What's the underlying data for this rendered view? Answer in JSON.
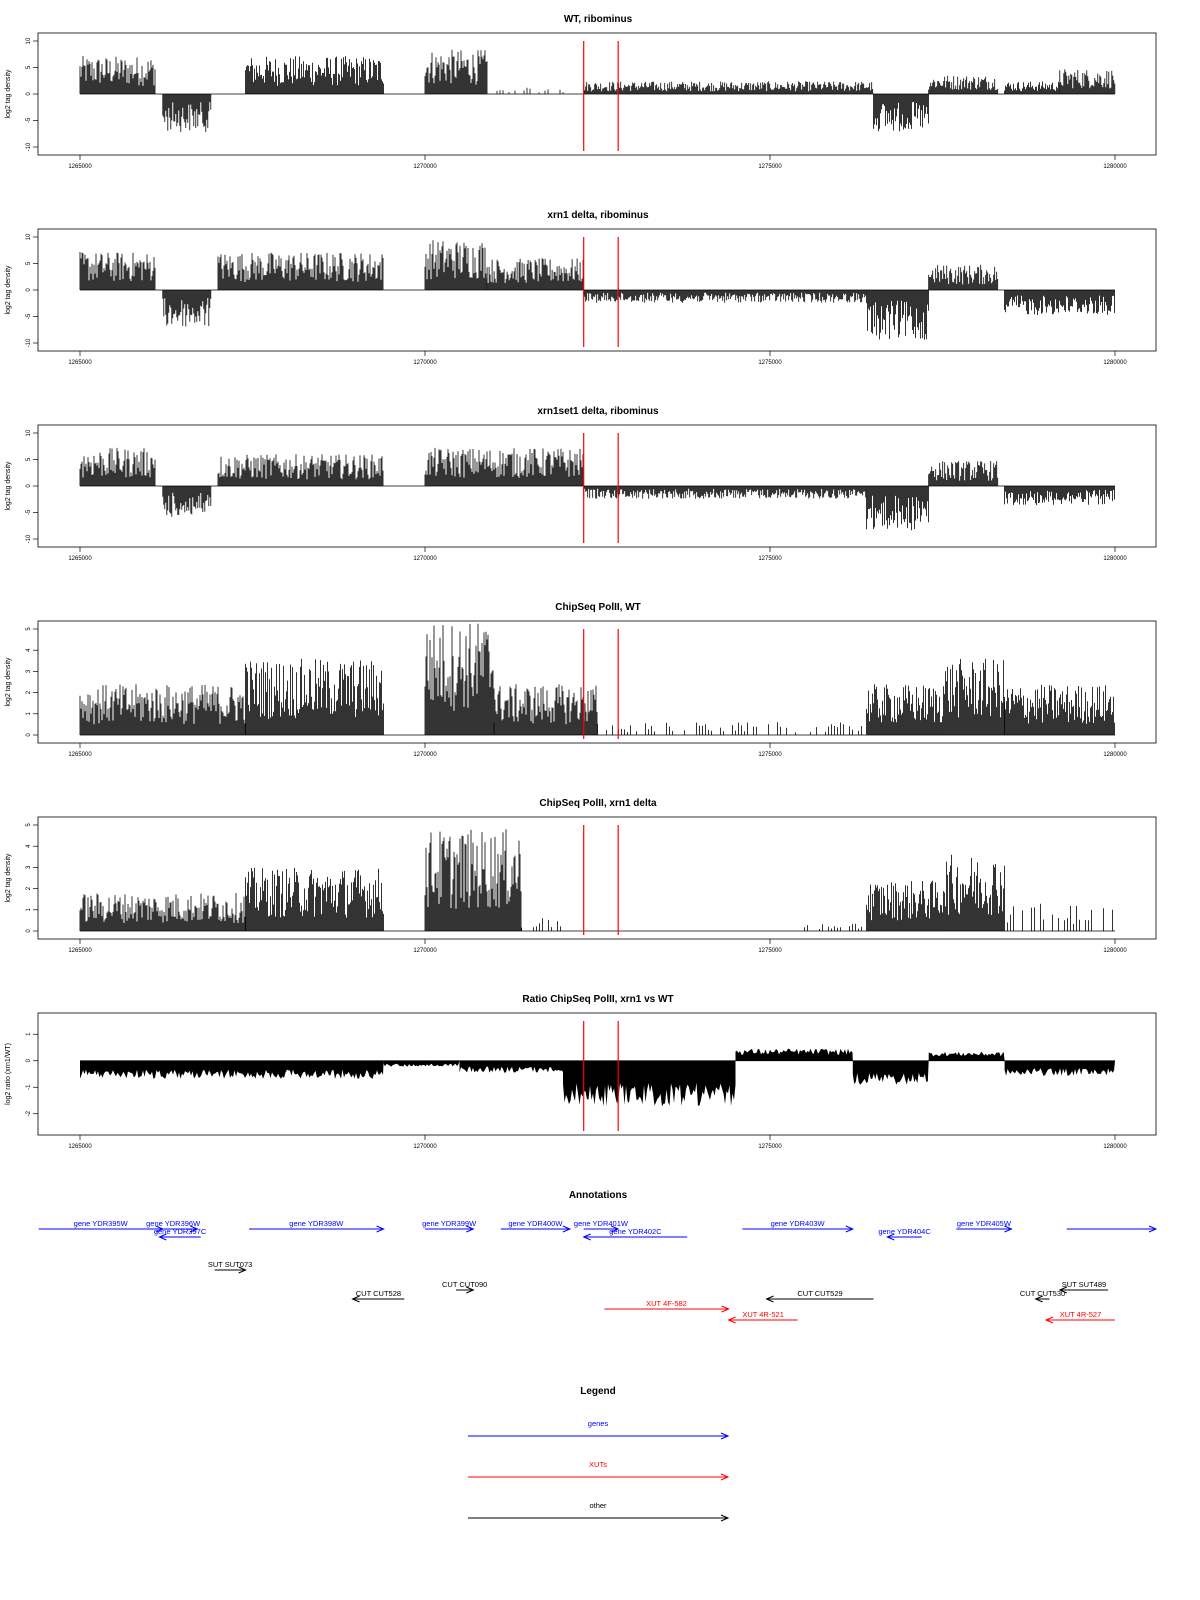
{
  "chart_data": [
    {
      "id": "wt_ribominus",
      "type": "bar",
      "title": "WT, ribominus",
      "ylabel": "log2 tag density",
      "xlim": [
        1265000,
        1280000
      ],
      "ylim": [
        -10,
        10
      ],
      "xticks": [
        "1265000",
        "1270000",
        "1275000",
        "1280000"
      ],
      "yticks": [
        "-10",
        "-5",
        "0",
        "5",
        "10"
      ],
      "signal_segments": [
        {
          "x": [
            1265000,
            1266100
          ],
          "y": 6
        },
        {
          "x": [
            1266200,
            1266900
          ],
          "y": -6
        },
        {
          "x": [
            1267400,
            1269400
          ],
          "y": 6
        },
        {
          "x": [
            1270000,
            1270900
          ],
          "y": 7
        },
        {
          "x": [
            1271000,
            1272300
          ],
          "y": 1
        },
        {
          "x": [
            1272300,
            1276500
          ],
          "y": 2
        },
        {
          "x": [
            1276500,
            1277300
          ],
          "y": -6
        },
        {
          "x": [
            1277300,
            1278300
          ],
          "y": 3
        },
        {
          "x": [
            1278400,
            1279200
          ],
          "y": 2
        },
        {
          "x": [
            1279200,
            1280000
          ],
          "y": 4
        }
      ],
      "reference_lines": [
        1272300,
        1272800
      ],
      "reference_color": "#ff0000"
    },
    {
      "id": "xrn1_ribominus",
      "type": "bar",
      "title": "xrn1 delta, ribominus",
      "ylabel": "log2 tag density",
      "xlim": [
        1265000,
        1280000
      ],
      "ylim": [
        -10,
        10
      ],
      "xticks": [
        "1265000",
        "1270000",
        "1275000",
        "1280000"
      ],
      "yticks": [
        "-10",
        "-5",
        "0",
        "5",
        "10"
      ],
      "signal_segments": [
        {
          "x": [
            1265000,
            1266100
          ],
          "y": 6
        },
        {
          "x": [
            1266200,
            1266900
          ],
          "y": -6
        },
        {
          "x": [
            1267000,
            1269400
          ],
          "y": 6
        },
        {
          "x": [
            1270000,
            1270900
          ],
          "y": 8
        },
        {
          "x": [
            1270900,
            1272300
          ],
          "y": 5
        },
        {
          "x": [
            1272300,
            1276400
          ],
          "y": -2
        },
        {
          "x": [
            1276400,
            1277300
          ],
          "y": -8
        },
        {
          "x": [
            1277300,
            1278300
          ],
          "y": 4
        },
        {
          "x": [
            1278400,
            1280000
          ],
          "y": -4
        }
      ],
      "reference_lines": [
        1272300,
        1272800
      ],
      "reference_color": "#ff0000"
    },
    {
      "id": "xrn1set1_ribominus",
      "type": "bar",
      "title": "xrn1set1 delta, ribominus",
      "ylabel": "log2 tag density",
      "xlim": [
        1265000,
        1280000
      ],
      "ylim": [
        -10,
        10
      ],
      "xticks": [
        "1265000",
        "1270000",
        "1275000",
        "1280000"
      ],
      "yticks": [
        "-10",
        "-5",
        "0",
        "5",
        "10"
      ],
      "signal_segments": [
        {
          "x": [
            1265000,
            1266100
          ],
          "y": 6
        },
        {
          "x": [
            1266200,
            1266900
          ],
          "y": -5
        },
        {
          "x": [
            1267000,
            1269400
          ],
          "y": 5
        },
        {
          "x": [
            1270000,
            1272300
          ],
          "y": 6
        },
        {
          "x": [
            1272300,
            1276400
          ],
          "y": -2
        },
        {
          "x": [
            1276400,
            1277300
          ],
          "y": -7
        },
        {
          "x": [
            1277300,
            1278300
          ],
          "y": 4
        },
        {
          "x": [
            1278400,
            1280000
          ],
          "y": -3
        }
      ],
      "reference_lines": [
        1272300,
        1272800
      ],
      "reference_color": "#ff0000"
    },
    {
      "id": "chipseq_wt",
      "type": "bar",
      "title": "ChipSeq PolII, WT",
      "ylabel": "log2 tag density",
      "xlim": [
        1265000,
        1280000
      ],
      "ylim": [
        0,
        5
      ],
      "xticks": [
        "1265000",
        "1270000",
        "1275000",
        "1280000"
      ],
      "yticks": [
        "0",
        "1",
        "2",
        "3",
        "4",
        "5"
      ],
      "signal_segments": [
        {
          "x": [
            1265000,
            1267400
          ],
          "y": 2
        },
        {
          "x": [
            1267400,
            1269400
          ],
          "y": 3
        },
        {
          "x": [
            1270000,
            1271000
          ],
          "y": 4.5
        },
        {
          "x": [
            1271000,
            1272500
          ],
          "y": 2
        },
        {
          "x": [
            1272500,
            1276400
          ],
          "y": 0.5
        },
        {
          "x": [
            1276400,
            1277500
          ],
          "y": 2
        },
        {
          "x": [
            1277500,
            1278400
          ],
          "y": 3
        },
        {
          "x": [
            1278400,
            1280000
          ],
          "y": 2
        }
      ],
      "reference_lines": [
        1272300,
        1272800
      ],
      "reference_color": "#ff0000"
    },
    {
      "id": "chipseq_xrn1",
      "type": "bar",
      "title": "ChipSeq PolII, xrn1 delta",
      "ylabel": "log2 tag density",
      "xlim": [
        1265000,
        1280000
      ],
      "ylim": [
        0,
        5
      ],
      "xticks": [
        "1265000",
        "1270000",
        "1275000",
        "1280000"
      ],
      "yticks": [
        "0",
        "1",
        "2",
        "3",
        "4",
        "5"
      ],
      "signal_segments": [
        {
          "x": [
            1265000,
            1267400
          ],
          "y": 1.5
        },
        {
          "x": [
            1267400,
            1269400
          ],
          "y": 2.5
        },
        {
          "x": [
            1270000,
            1271400
          ],
          "y": 4
        },
        {
          "x": [
            1271400,
            1272000
          ],
          "y": 0.5
        },
        {
          "x": [
            1275500,
            1276400
          ],
          "y": 0.3
        },
        {
          "x": [
            1276400,
            1277500
          ],
          "y": 2
        },
        {
          "x": [
            1277500,
            1278400
          ],
          "y": 3
        },
        {
          "x": [
            1278400,
            1280000
          ],
          "y": 1.2
        }
      ],
      "reference_lines": [
        1272300,
        1272800
      ],
      "reference_color": "#ff0000"
    },
    {
      "id": "ratio_chipseq",
      "type": "area",
      "title": "Ratio ChipSeq PolII, xrn1 vs WT",
      "ylabel": "log2 ratio (xrn1/WT)",
      "xlim": [
        1265000,
        1280000
      ],
      "ylim": [
        -2.5,
        1.5
      ],
      "xticks": [
        "1265000",
        "1270000",
        "1275000",
        "1280000"
      ],
      "yticks": [
        "-2",
        "-1",
        "0",
        "1"
      ],
      "signal_segments": [
        {
          "x": [
            1265000,
            1269400
          ],
          "y": -0.6
        },
        {
          "x": [
            1269400,
            1270500
          ],
          "y": -0.2
        },
        {
          "x": [
            1270500,
            1272000
          ],
          "y": -0.4
        },
        {
          "x": [
            1272000,
            1274500
          ],
          "y": -1.5
        },
        {
          "x": [
            1274500,
            1276200
          ],
          "y": 0.4
        },
        {
          "x": [
            1276200,
            1277300
          ],
          "y": -0.8
        },
        {
          "x": [
            1277300,
            1278400
          ],
          "y": 0.3
        },
        {
          "x": [
            1278400,
            1280000
          ],
          "y": -0.5
        }
      ],
      "reference_lines": [
        1272300,
        1272800
      ],
      "reference_color": "#ff0000"
    }
  ],
  "annotations": {
    "title": "Annotations",
    "features": [
      {
        "label": "gene YDR395W",
        "start": 1264400,
        "end": 1266200,
        "dir": "+",
        "row": 0,
        "cls": "gene"
      },
      {
        "label": "gene YDR396W",
        "start": 1266000,
        "end": 1266700,
        "dir": "+",
        "row": 0,
        "cls": "gene"
      },
      {
        "label": "gene YDR397C",
        "start": 1266150,
        "end": 1266750,
        "dir": "-",
        "row": 1,
        "cls": "gene"
      },
      {
        "label": "gene YDR398W",
        "start": 1267450,
        "end": 1269400,
        "dir": "+",
        "row": 0,
        "cls": "gene"
      },
      {
        "label": "gene YDR399W",
        "start": 1270000,
        "end": 1270700,
        "dir": "+",
        "row": 0,
        "cls": "gene"
      },
      {
        "label": "gene YDR400W",
        "start": 1271100,
        "end": 1272100,
        "dir": "+",
        "row": 0,
        "cls": "gene"
      },
      {
        "label": "gene YDR401W",
        "start": 1272300,
        "end": 1272800,
        "dir": "+",
        "row": 0,
        "cls": "gene"
      },
      {
        "label": "gene YDR402C",
        "start": 1272300,
        "end": 1273800,
        "dir": "-",
        "row": 1,
        "cls": "gene"
      },
      {
        "label": "gene YDR403W",
        "start": 1274600,
        "end": 1276200,
        "dir": "+",
        "row": 0,
        "cls": "gene"
      },
      {
        "label": "gene YDR404C",
        "start": 1276700,
        "end": 1277200,
        "dir": "-",
        "row": 1,
        "cls": "gene"
      },
      {
        "label": "gene YDR405W",
        "start": 1277700,
        "end": 1278500,
        "dir": "+",
        "row": 0,
        "cls": "gene"
      },
      {
        "label": "",
        "start": 1279300,
        "end": 1280600,
        "dir": "+",
        "row": 0,
        "cls": "gene"
      },
      {
        "label": "SUT SUT073",
        "start": 1266950,
        "end": 1267400,
        "dir": "+",
        "row": 2,
        "cls": "other"
      },
      {
        "label": "CUT CUT528",
        "start": 1268950,
        "end": 1269700,
        "dir": "-",
        "row": 4,
        "cls": "other"
      },
      {
        "label": "CUT CUT090",
        "start": 1270450,
        "end": 1270700,
        "dir": "+",
        "row": 3,
        "cls": "other"
      },
      {
        "label": "XUT 4F-582",
        "start": 1272600,
        "end": 1274400,
        "dir": "+",
        "row": 5,
        "cls": "xut"
      },
      {
        "label": "XUT 4R-521",
        "start": 1274400,
        "end": 1275400,
        "dir": "-",
        "row": 6,
        "cls": "xut"
      },
      {
        "label": "CUT CUT529",
        "start": 1274950,
        "end": 1276500,
        "dir": "-",
        "row": 4,
        "cls": "other"
      },
      {
        "label": "SUT SUT489",
        "start": 1279200,
        "end": 1279900,
        "dir": "-",
        "row": 3,
        "cls": "other"
      },
      {
        "label": "CUT CUT530",
        "start": 1278850,
        "end": 1279050,
        "dir": "-",
        "row": 4,
        "cls": "other"
      },
      {
        "label": "XUT 4R-527",
        "start": 1279000,
        "end": 1280000,
        "dir": "-",
        "row": 6,
        "cls": "xut"
      }
    ]
  },
  "legend": {
    "title": "Legend",
    "items": [
      {
        "label": "genes",
        "color": "#0000ff"
      },
      {
        "label": "XUTs",
        "color": "#ff0000"
      },
      {
        "label": "other",
        "color": "#000000"
      }
    ]
  },
  "colors": {
    "gene": "#0000ff",
    "xut": "#ff0000",
    "other": "#000000",
    "signal": "#000000",
    "reference": "#ff0000"
  }
}
